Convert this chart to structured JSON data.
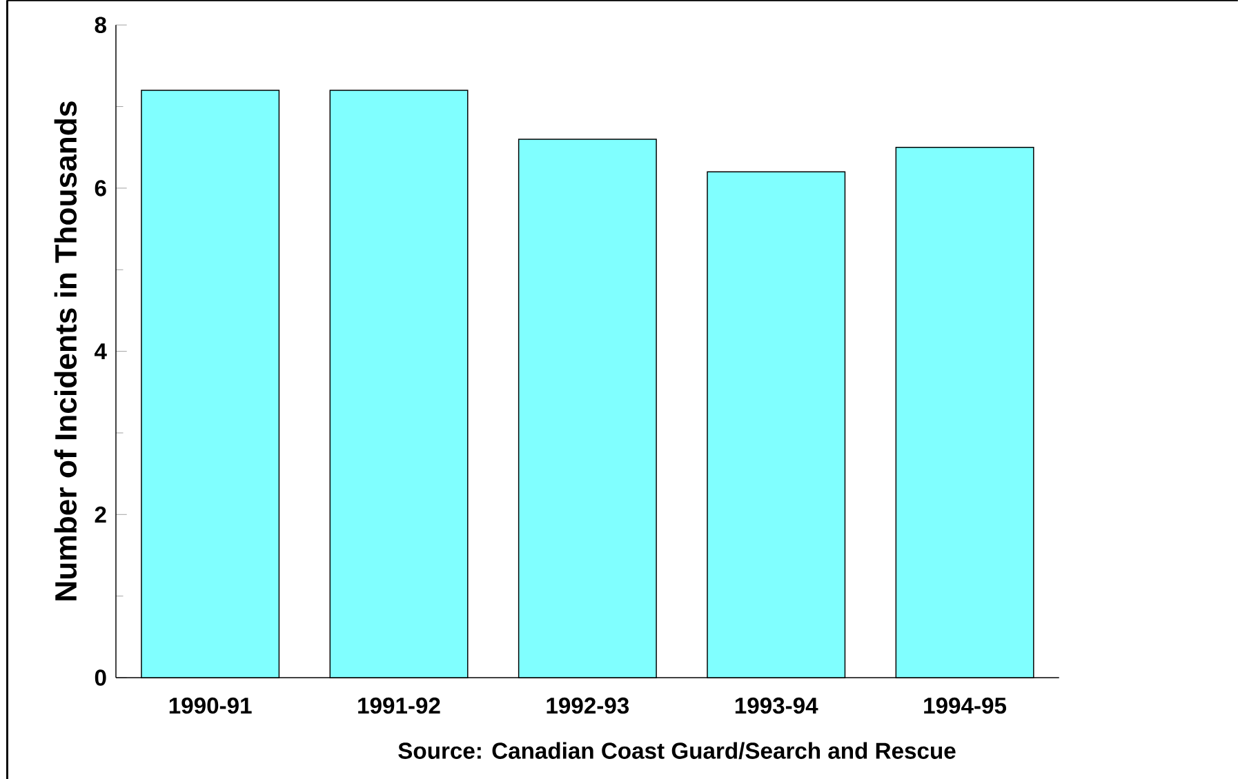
{
  "chart_data": {
    "type": "bar",
    "ylabel": "Number of Incidents in Thousands",
    "categories": [
      "1990-91",
      "1991-92",
      "1992-93",
      "1993-94",
      "1994-95"
    ],
    "values": [
      7.2,
      7.2,
      6.6,
      6.2,
      6.5
    ],
    "color": "#80ffff",
    "ylim": [
      0,
      8
    ],
    "yticks": [
      0,
      2,
      4,
      6,
      8
    ],
    "grid": false,
    "annotations": [
      "Source: Canadian Coast Guard/Search and Rescue"
    ]
  }
}
